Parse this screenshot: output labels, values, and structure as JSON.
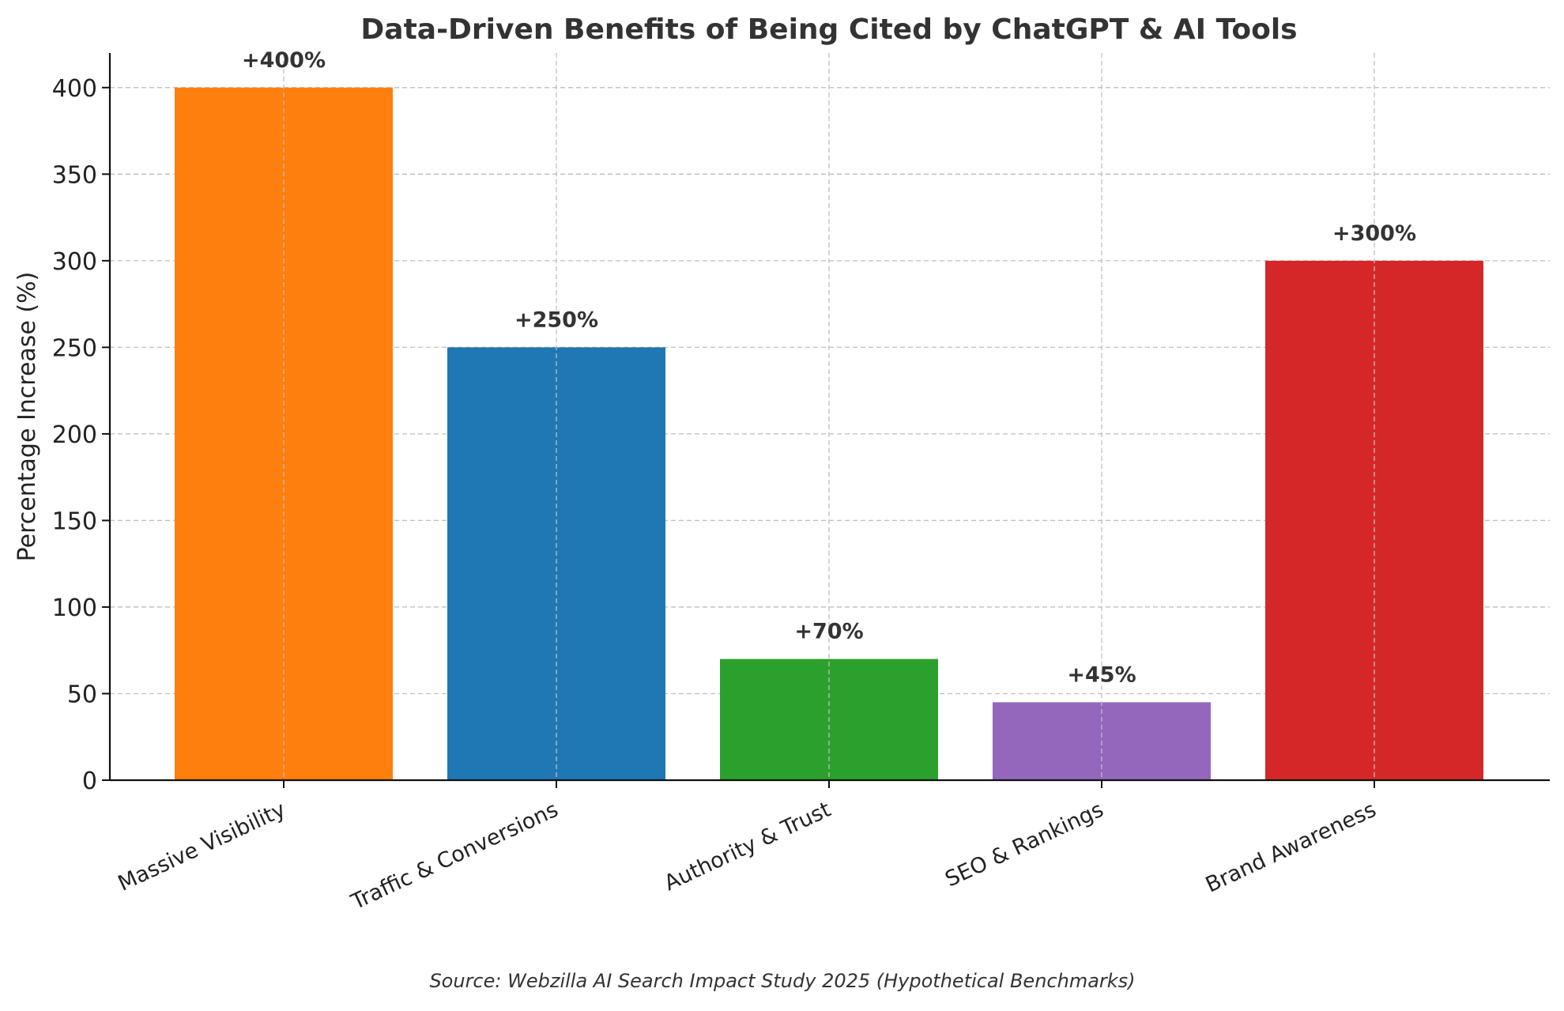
{
  "chart_data": {
    "type": "bar",
    "title": "Data-Driven Benefits of Being Cited by ChatGPT & AI Tools",
    "ylabel": "Percentage Increase (%)",
    "xlabel": "",
    "categories": [
      "Massive Visibility",
      "Traffic & Conversions",
      "Authority & Trust",
      "SEO & Rankings",
      "Brand Awareness"
    ],
    "values": [
      400,
      250,
      70,
      45,
      300
    ],
    "data_labels": [
      "+400%",
      "+250%",
      "+70%",
      "+45%",
      "+300%"
    ],
    "colors": [
      "#ff7f0e",
      "#1f77b4",
      "#2ca02c",
      "#9467bd",
      "#d62728"
    ],
    "ylim": [
      0,
      420
    ],
    "yticks": [
      0,
      50,
      100,
      150,
      200,
      250,
      300,
      350,
      400
    ],
    "grid": true,
    "legend": "none",
    "source_note": "Source: Webzilla AI Search Impact Study 2025 (Hypothetical Benchmarks)"
  }
}
